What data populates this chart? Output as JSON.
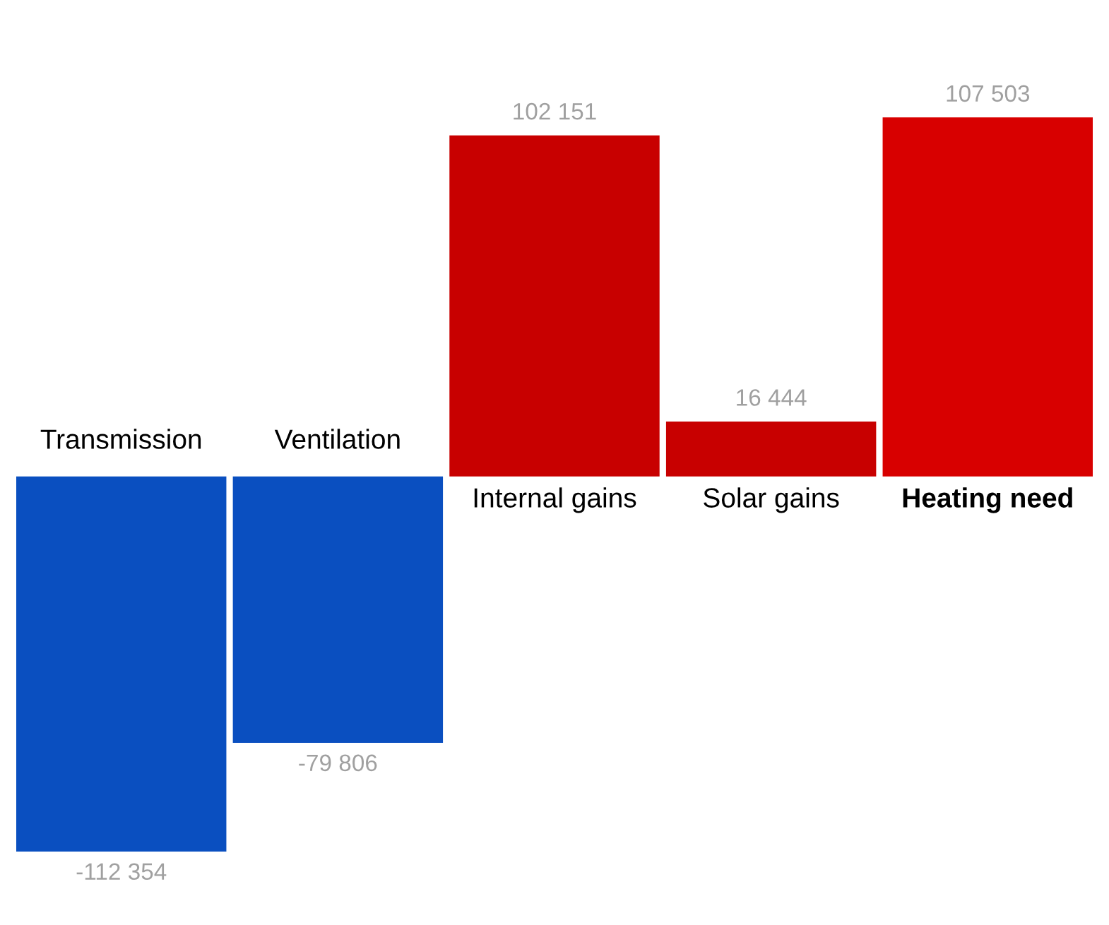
{
  "chart_data": {
    "type": "bar",
    "categories": [
      "Transmission",
      "Ventilation",
      "Internal gains",
      "Solar gains",
      "Heating need"
    ],
    "values": [
      -112354,
      -79806,
      102151,
      16444,
      107503
    ],
    "colors": [
      "#0a4fc0",
      "#0a4fc0",
      "#c80000",
      "#c80000",
      "#d80000"
    ],
    "value_labels": [
      "-112 354",
      "-79 806",
      "102 151",
      "16 444",
      "107 503"
    ]
  }
}
